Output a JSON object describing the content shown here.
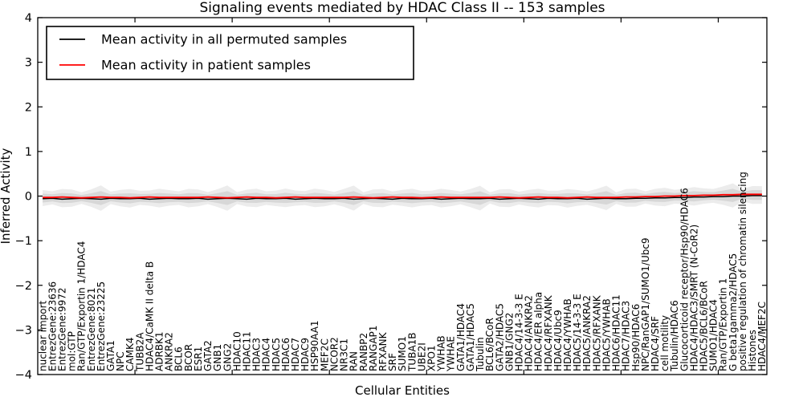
{
  "figure": {
    "background": "#ffffff",
    "frame_color": "#000000"
  },
  "chart_data": {
    "type": "line",
    "title": "Signaling events mediated by HDAC Class II -- 153 samples",
    "xlabel": "Cellular Entities",
    "ylabel": "Inferred Activity",
    "ylim": [
      -4,
      4
    ],
    "yticks": [
      -4,
      -3,
      -2,
      -1,
      0,
      1,
      2,
      3,
      4
    ],
    "xtick_positions": [
      10,
      20,
      30,
      40,
      50,
      60,
      70
    ],
    "grid": false,
    "legend": {
      "position": "upper left",
      "entries": [
        {
          "label": "Mean activity in all permuted samples",
          "color": "#000000"
        },
        {
          "label": "Mean activity in patient samples",
          "color": "#ff0000"
        }
      ]
    },
    "permuted_spread_band": {
      "color": "#d9d9d9",
      "typical_halfwidth": 0.1,
      "max_halfwidth": 0.2,
      "note": "light gray cloud of permuted-sample distributions hugging the zero line"
    },
    "categories": [
      "nuclear import",
      "EntrezGene:23636",
      "EntrezGene:9972",
      "mol:GTP",
      "Ran/GTP/Exportin 1/HDAC4",
      "EntrezGene:8021",
      "EntrezGene:23225",
      "GATA1",
      "NPC",
      "CAMK4",
      "TUBB2A",
      "HDAC4/CaMK II delta B",
      "ADRBK1",
      "ANKRA2",
      "BCL6",
      "BCOR",
      "ESR1",
      "GATA2",
      "GNB1",
      "GNG2",
      "HDAC10",
      "HDAC11",
      "HDAC3",
      "HDAC4",
      "HDAC5",
      "HDAC6",
      "HDAC7",
      "HDAC9",
      "HSP90AA1",
      "MEF2C",
      "NCOR2",
      "NR3C1",
      "RAN",
      "RANBP2",
      "RANGAP1",
      "RFXANK",
      "SRF",
      "SUMO1",
      "TUBA1B",
      "UBE2I",
      "XPO1",
      "YWHAB",
      "YWHAE",
      "GATA1/HDAC4",
      "GATA1/HDAC5",
      "Tubulin",
      "BCL6/BCoR",
      "GATA2/HDAC5",
      "GNB1/GNG2",
      "HDAC4/14-3-3 E",
      "HDAC4/ANKRA2",
      "HDAC4/ER alpha",
      "HDAC4/RFXANK",
      "HDAC4/Ubc9",
      "HDAC4/YWHAB",
      "HDAC5/14-3-3 E",
      "HDAC5/ANKRA2",
      "HDAC5/RFXANK",
      "HDAC5/YWHAB",
      "HDAC6/HDAC11",
      "HDAC7/HDAC3",
      "Hsp90/HDAC6",
      "NPC/RanGAP1/SUMO1/Ubc9",
      "HDAC4/SRF",
      "cell motility",
      "Tubulin/HDAC6",
      "Glucocorticoid receptor/Hsp90/HDAC6",
      "HDAC4/HDAC3/SMRT (N-CoR2)",
      "HDAC5/BCL6/BCoR",
      "SUMO1/HDAC4",
      "Ran/GTP/Exportin 1",
      "G beta1gamma2/HDAC5",
      "positive regulation of chromatin silencing",
      "Histones",
      "HDAC4/MEF2C"
    ],
    "series": [
      {
        "name": "Mean activity in all permuted samples",
        "color": "#000000",
        "values": [
          -0.06,
          -0.05,
          -0.07,
          -0.06,
          -0.05,
          -0.06,
          -0.07,
          -0.05,
          -0.06,
          -0.06,
          -0.05,
          -0.07,
          -0.06,
          -0.05,
          -0.06,
          -0.06,
          -0.05,
          -0.07,
          -0.06,
          -0.05,
          -0.06,
          -0.07,
          -0.05,
          -0.06,
          -0.06,
          -0.05,
          -0.07,
          -0.06,
          -0.05,
          -0.06,
          -0.06,
          -0.05,
          -0.07,
          -0.06,
          -0.05,
          -0.06,
          -0.07,
          -0.05,
          -0.06,
          -0.06,
          -0.05,
          -0.07,
          -0.06,
          -0.05,
          -0.06,
          -0.06,
          -0.05,
          -0.07,
          -0.06,
          -0.05,
          -0.06,
          -0.07,
          -0.05,
          -0.06,
          -0.06,
          -0.05,
          -0.07,
          -0.06,
          -0.05,
          -0.06,
          -0.06,
          -0.05,
          -0.05,
          -0.04,
          -0.04,
          -0.03,
          -0.03,
          -0.02,
          -0.02,
          -0.01,
          -0.01,
          0.0,
          0.0,
          0.01,
          0.01
        ]
      },
      {
        "name": "Mean activity in patient samples",
        "color": "#ff0000",
        "values": [
          -0.03,
          -0.03,
          -0.02,
          -0.03,
          -0.04,
          -0.03,
          -0.02,
          -0.03,
          -0.03,
          -0.04,
          -0.03,
          -0.02,
          -0.03,
          -0.03,
          -0.03,
          -0.03,
          -0.03,
          -0.02,
          -0.03,
          -0.04,
          -0.03,
          -0.02,
          -0.03,
          -0.03,
          -0.04,
          -0.03,
          -0.02,
          -0.03,
          -0.03,
          -0.03,
          -0.03,
          -0.03,
          -0.02,
          -0.03,
          -0.04,
          -0.03,
          -0.02,
          -0.03,
          -0.03,
          -0.04,
          -0.03,
          -0.02,
          -0.03,
          -0.03,
          -0.03,
          -0.03,
          -0.03,
          -0.02,
          -0.03,
          -0.04,
          -0.03,
          -0.02,
          -0.03,
          -0.03,
          -0.04,
          -0.03,
          -0.02,
          -0.03,
          -0.03,
          -0.03,
          -0.02,
          -0.02,
          -0.01,
          -0.01,
          0.0,
          0.0,
          0.01,
          0.01,
          0.02,
          0.02,
          0.03,
          0.03,
          0.04,
          0.04,
          0.04
        ]
      }
    ]
  }
}
